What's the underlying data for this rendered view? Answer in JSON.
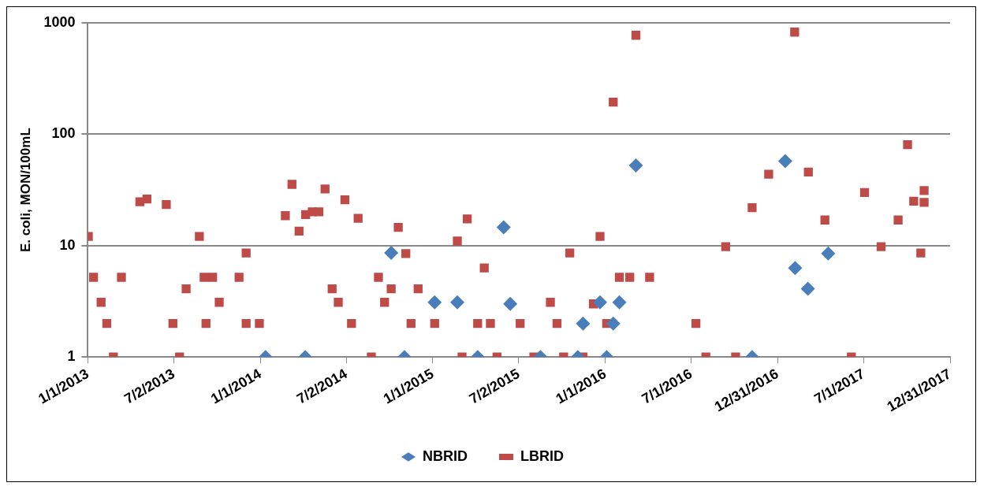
{
  "chart_data": {
    "type": "scatter",
    "ylabel": "E. coli, MON/100mL",
    "log": "y",
    "grid": "y",
    "legend": "bottom",
    "xlim": [
      "2013-01-01",
      "2017-12-31"
    ],
    "xticks": [
      {
        "value": "2013-01-01",
        "label": "1/1/2013"
      },
      {
        "value": "2013-07-02",
        "label": "7/2/2013"
      },
      {
        "value": "2014-01-01",
        "label": "1/1/2014"
      },
      {
        "value": "2014-07-02",
        "label": "7/2/2014"
      },
      {
        "value": "2015-01-01",
        "label": "1/1/2015"
      },
      {
        "value": "2015-07-02",
        "label": "7/2/2015"
      },
      {
        "value": "2016-01-01",
        "label": "1/1/2016"
      },
      {
        "value": "2016-07-01",
        "label": "7/1/2016"
      },
      {
        "value": "2016-12-31",
        "label": "12/31/2016"
      },
      {
        "value": "2017-07-01",
        "label": "7/1/2017"
      },
      {
        "value": "2017-12-31",
        "label": "12/31/2017"
      }
    ],
    "ylim": [
      1,
      1000
    ],
    "yticks": [
      1,
      10,
      100,
      1000
    ],
    "series": [
      {
        "name": "NBRID",
        "color": "#4a7ebb",
        "marker": "diamond",
        "x": [
          "2014-01-12",
          "2014-04-06",
          "2014-10-05",
          "2014-11-02",
          "2015-01-05",
          "2015-02-22",
          "2015-04-06",
          "2015-05-31",
          "2015-06-14",
          "2015-08-17",
          "2015-11-04",
          "2015-11-15",
          "2015-12-21",
          "2016-01-04",
          "2016-01-18",
          "2016-01-31",
          "2016-03-06",
          "2016-11-07",
          "2017-01-16",
          "2017-02-06",
          "2017-03-05",
          "2017-04-17"
        ],
        "values": [
          1,
          1,
          8.6,
          1,
          3.1,
          3.1,
          1,
          14.6,
          3,
          1,
          1,
          2,
          3.1,
          1,
          2,
          3.1,
          52.5,
          1,
          57.5,
          6.3,
          4.1,
          8.5
        ]
      },
      {
        "name": "LBRID",
        "color": "#be4b48",
        "marker": "square",
        "x": [
          "2013-01-02",
          "2013-01-13",
          "2013-01-29",
          "2013-02-10",
          "2013-02-24",
          "2013-03-13",
          "2013-04-21",
          "2013-05-06",
          "2013-06-16",
          "2013-06-30",
          "2013-07-14",
          "2013-07-28",
          "2013-08-25",
          "2013-09-04",
          "2013-09-08",
          "2013-09-22",
          "2013-10-06",
          "2013-11-17",
          "2013-12-02",
          "2013-12-02",
          "2013-12-30",
          "2014-02-23",
          "2014-03-09",
          "2014-03-24",
          "2014-04-07",
          "2014-04-21",
          "2014-05-05",
          "2014-05-18",
          "2014-06-02",
          "2014-06-15",
          "2014-06-29",
          "2014-07-13",
          "2014-07-27",
          "2014-08-24",
          "2014-09-08",
          "2014-09-21",
          "2014-10-05",
          "2014-10-20",
          "2014-11-05",
          "2014-11-16",
          "2014-12-01",
          "2015-01-05",
          "2015-02-22",
          "2015-03-04",
          "2015-03-15",
          "2015-04-06",
          "2015-04-20",
          "2015-05-03",
          "2015-05-17",
          "2015-07-05",
          "2015-08-03",
          "2015-09-07",
          "2015-09-21",
          "2015-10-05",
          "2015-10-18",
          "2015-11-15",
          "2015-12-07",
          "2015-12-21",
          "2016-01-04",
          "2016-01-18",
          "2016-01-31",
          "2016-02-22",
          "2016-03-06",
          "2016-04-04",
          "2016-07-11",
          "2016-08-01",
          "2016-09-12",
          "2016-10-03",
          "2016-11-07",
          "2016-12-12",
          "2017-02-05",
          "2017-03-06",
          "2017-04-10",
          "2017-06-05",
          "2017-07-03",
          "2017-08-07",
          "2017-09-12",
          "2017-10-02",
          "2017-10-15",
          "2017-10-30",
          "2017-11-06",
          "2017-11-06"
        ],
        "values": [
          12.1,
          5.2,
          3.1,
          2,
          1,
          5.2,
          24.8,
          26.2,
          23.4,
          2,
          1,
          4.1,
          12.1,
          5.2,
          2,
          5.2,
          3.1,
          5.2,
          8.6,
          2,
          2,
          18.6,
          35.5,
          13.5,
          19,
          20.1,
          20.1,
          32.3,
          4.1,
          3.1,
          25.8,
          2,
          17.6,
          1,
          5.2,
          3.1,
          4.1,
          14.6,
          8.5,
          2,
          4.1,
          2,
          11,
          1,
          17.4,
          2,
          6.3,
          2,
          1,
          2,
          1,
          3.1,
          2,
          1,
          8.6,
          1,
          3,
          12.1,
          2,
          194,
          5.2,
          5.2,
          774,
          5.2,
          2,
          1,
          9.8,
          1,
          21.9,
          43.8,
          826,
          45.8,
          17,
          1,
          30,
          9.8,
          17,
          80.7,
          25.1,
          8.6,
          31.2,
          24.5
        ]
      }
    ]
  }
}
